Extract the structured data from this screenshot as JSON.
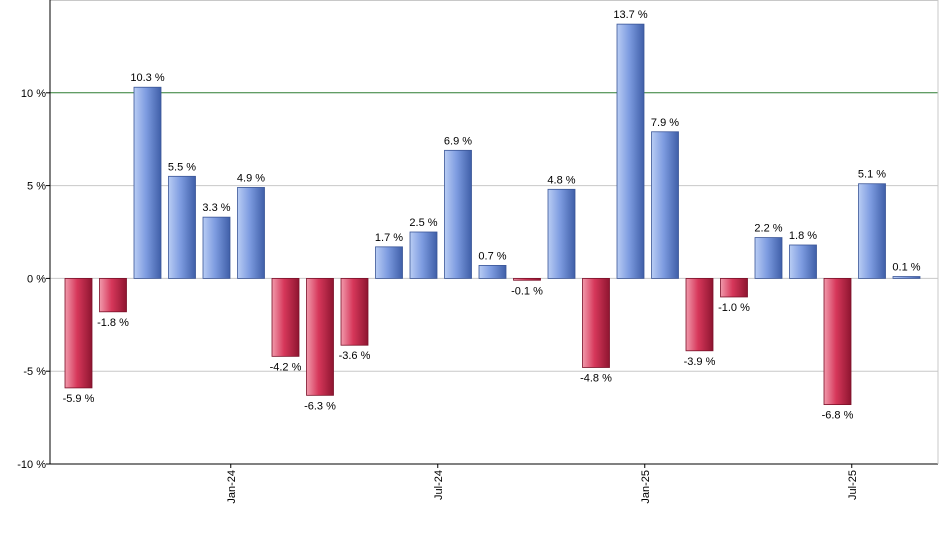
{
  "chart_data": {
    "type": "bar",
    "title": "",
    "xlabel": "",
    "ylabel": "",
    "ylim": [
      -10,
      15
    ],
    "y_ticks": [
      {
        "value": -10,
        "label": "-10 %"
      },
      {
        "value": -5,
        "label": "-5 %"
      },
      {
        "value": 0,
        "label": "0 %"
      },
      {
        "value": 5,
        "label": "5 %"
      },
      {
        "value": 10,
        "label": "10 %"
      }
    ],
    "reference_line": {
      "value": 10,
      "color": "#2e7d32"
    },
    "grid": true,
    "x_tick_labels": [
      {
        "index": 4,
        "label": "Jan-24"
      },
      {
        "index": 10,
        "label": "Jul-24"
      },
      {
        "index": 16,
        "label": "Jan-25"
      },
      {
        "index": 22,
        "label": "Jul-25"
      }
    ],
    "values": [
      -5.9,
      -1.8,
      10.3,
      5.5,
      3.3,
      4.9,
      -4.2,
      -6.3,
      -3.6,
      1.7,
      2.5,
      6.9,
      0.7,
      -0.1,
      4.8,
      -4.8,
      13.7,
      7.9,
      -3.9,
      -1.0,
      2.2,
      1.8,
      -6.8,
      5.1,
      0.1
    ],
    "labels": [
      "-5.9 %",
      "-1.8 %",
      "10.3 %",
      "5.5 %",
      "3.3 %",
      "4.9 %",
      "-4.2 %",
      "-6.3 %",
      "-3.6 %",
      "1.7 %",
      "2.5 %",
      "6.9 %",
      "0.7 %",
      "-0.1 %",
      "4.8 %",
      "-4.8 %",
      "13.7 %",
      "7.9 %",
      "-3.9 %",
      "-1.0 %",
      "2.2 %",
      "1.8 %",
      "-6.8 %",
      "5.1 %",
      "0.1 %"
    ],
    "colors": {
      "positive": "#6f8fd6",
      "negative": "#c8284a"
    }
  }
}
